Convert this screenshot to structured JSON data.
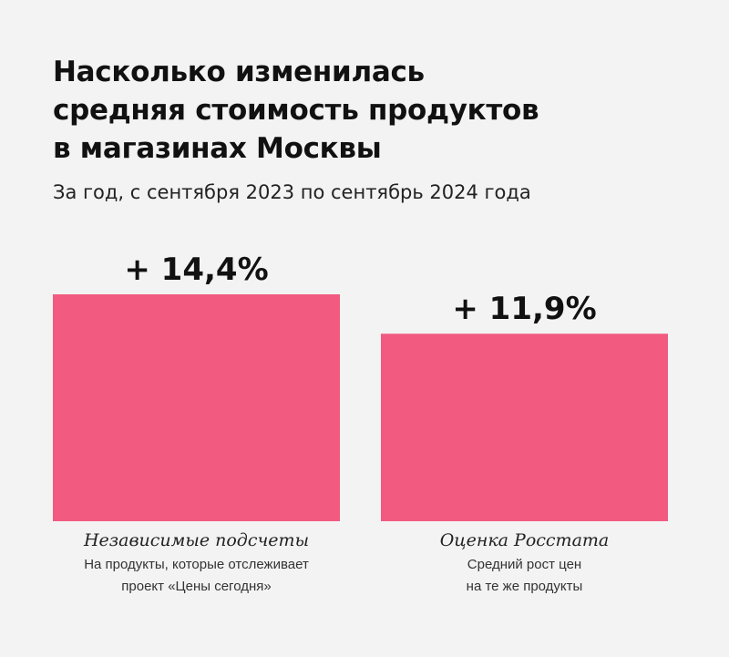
{
  "header": {
    "title_lines": [
      "Насколько изменилась",
      "средняя стоимость продуктов",
      "в магазинах Москвы"
    ],
    "subtitle": "За год, с сентября 2023 по сентябрь 2024 года"
  },
  "colors": {
    "bar": "#f25a80",
    "background": "#f3f3f3"
  },
  "chart_data": {
    "type": "bar",
    "categories": [
      "Независимые подсчеты",
      "Оценка Росстата"
    ],
    "values": [
      14.4,
      11.9
    ],
    "value_labels": [
      "+ 14,4%",
      "+ 11,9%"
    ],
    "category_notes": [
      [
        "На продукты, которые отслеживает",
        "проект «Цены сегодня»"
      ],
      [
        "Средний рост цен",
        "на те же продукты"
      ]
    ],
    "ylim": [
      0,
      14.4
    ],
    "grid": false,
    "legend": "none"
  }
}
